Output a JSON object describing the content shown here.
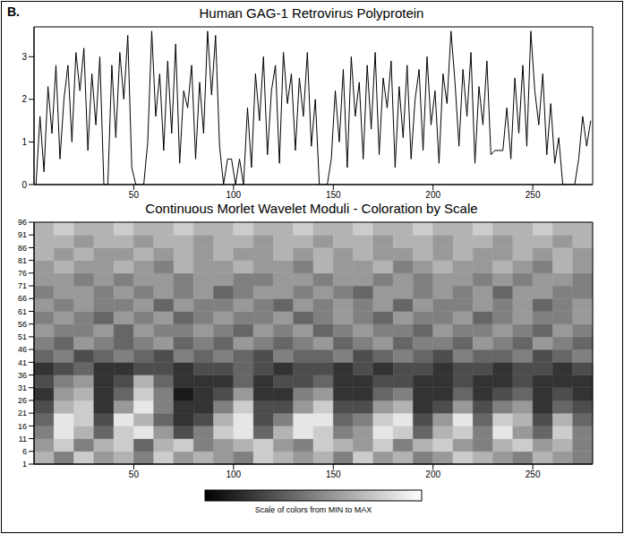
{
  "panel_label": "B.",
  "chart_data": [
    {
      "type": "line",
      "title": "Human GAG-1 Retrovirus Polyprotein",
      "color": "#000000",
      "xlim": [
        0,
        280
      ],
      "xticks": [
        50,
        100,
        150,
        200,
        250
      ],
      "ylim": [
        0,
        3.7
      ],
      "yticks": [
        0,
        1,
        2,
        3
      ],
      "x": [
        1,
        3,
        5,
        7,
        9,
        11,
        13,
        15,
        17,
        19,
        21,
        23,
        25,
        27,
        29,
        31,
        33,
        35,
        37,
        39,
        41,
        43,
        45,
        47,
        49,
        51,
        53,
        55,
        57,
        59,
        61,
        63,
        65,
        67,
        69,
        71,
        73,
        75,
        77,
        79,
        81,
        83,
        85,
        87,
        89,
        91,
        93,
        95,
        97,
        99,
        101,
        103,
        105,
        107,
        109,
        111,
        113,
        115,
        117,
        119,
        121,
        123,
        125,
        127,
        129,
        131,
        133,
        135,
        137,
        139,
        141,
        143,
        145,
        147,
        149,
        151,
        153,
        155,
        157,
        159,
        161,
        163,
        165,
        167,
        169,
        171,
        173,
        175,
        177,
        179,
        181,
        183,
        185,
        187,
        189,
        191,
        193,
        195,
        197,
        199,
        201,
        203,
        205,
        207,
        209,
        211,
        213,
        215,
        217,
        219,
        221,
        223,
        225,
        227,
        229,
        231,
        233,
        235,
        237,
        239,
        241,
        243,
        245,
        247,
        249,
        251,
        253,
        255,
        257,
        259,
        261,
        263,
        265,
        267,
        269,
        271,
        273,
        275,
        277,
        279
      ],
      "values": [
        0,
        1.6,
        0.3,
        2.3,
        1.2,
        2.8,
        0.6,
        2.0,
        2.8,
        1.0,
        3.1,
        2.2,
        3.2,
        0.8,
        2.6,
        1.4,
        3.0,
        0,
        0,
        2.8,
        1.1,
        3.1,
        2.0,
        3.5,
        0.4,
        0,
        0,
        0,
        1.0,
        3.6,
        1.6,
        2.6,
        0.8,
        2.9,
        1.2,
        3.3,
        0.5,
        2.2,
        1.8,
        2.8,
        0.6,
        2.4,
        1.2,
        3.6,
        2.1,
        3.5,
        0.9,
        0,
        0.6,
        0.6,
        0,
        0.6,
        0,
        1.8,
        0.4,
        2.6,
        1.5,
        3.0,
        0.7,
        2.2,
        2.8,
        0.5,
        3.1,
        1.9,
        2.6,
        0.8,
        2.5,
        1.6,
        3.1,
        0.9,
        2.0,
        0,
        0,
        0,
        0.6,
        2.2,
        1.0,
        2.7,
        0.4,
        3.0,
        1.6,
        2.4,
        0.6,
        2.8,
        1.3,
        3.1,
        0.7,
        2.5,
        1.8,
        2.9,
        0.4,
        2.3,
        1.1,
        2.8,
        0.6,
        2.0,
        2.7,
        0.8,
        3.0,
        1.4,
        2.2,
        0.5,
        2.6,
        1.9,
        3.6,
        2.4,
        0.9,
        2.7,
        1.6,
        3.1,
        0.5,
        2.3,
        1.4,
        2.9,
        0.7,
        0.8,
        0.8,
        0.8,
        1.8,
        0.6,
        2.5,
        1.2,
        2.8,
        0.9,
        3.6,
        2.2,
        1.4,
        2.6,
        0.7,
        1.9,
        0.5,
        1.1,
        0,
        0,
        0,
        0,
        0.6,
        1.6,
        0.9,
        1.5
      ]
    },
    {
      "type": "heatmap",
      "title": "Continuous Morlet Wavelet Moduli - Coloration by Scale",
      "xlim": [
        0,
        280
      ],
      "xticks": [
        50,
        100,
        150,
        200,
        250
      ],
      "ylim": [
        1,
        96
      ],
      "yticks": [
        1,
        6,
        11,
        16,
        21,
        26,
        31,
        36,
        41,
        46,
        51,
        56,
        61,
        66,
        71,
        76,
        81,
        86,
        91,
        96
      ],
      "x_bins": [
        0,
        10,
        20,
        30,
        40,
        50,
        60,
        70,
        80,
        90,
        100,
        110,
        120,
        130,
        140,
        150,
        160,
        170,
        180,
        190,
        200,
        210,
        220,
        230,
        240,
        250,
        260,
        270,
        280
      ],
      "y_bins": [
        1,
        6,
        11,
        16,
        21,
        26,
        31,
        36,
        41,
        46,
        51,
        56,
        61,
        66,
        71,
        76,
        81,
        86,
        91,
        96
      ],
      "cells": [
        [
          0.7,
          0.5,
          0.8,
          0.6,
          0.7,
          0.5,
          0.8,
          0.6,
          0.7,
          0.6,
          0.5,
          0.8,
          0.7,
          0.6,
          0.7,
          0.5,
          0.8,
          0.6,
          0.7,
          0.5,
          0.6,
          0.8,
          0.7,
          0.6,
          0.5,
          0.7,
          0.6,
          0.5
        ],
        [
          0.6,
          0.8,
          0.5,
          0.7,
          0.8,
          0.4,
          0.7,
          0.8,
          0.5,
          0.6,
          0.7,
          0.8,
          0.6,
          0.5,
          0.8,
          0.7,
          0.6,
          0.8,
          0.5,
          0.7,
          0.8,
          0.6,
          0.5,
          0.7,
          0.8,
          0.6,
          0.7,
          0.5
        ],
        [
          0.5,
          0.9,
          0.7,
          0.4,
          0.8,
          0.9,
          0.6,
          0.3,
          0.5,
          0.8,
          0.9,
          0.4,
          0.7,
          0.9,
          0.8,
          0.5,
          0.6,
          0.9,
          0.8,
          0.4,
          0.7,
          0.8,
          0.5,
          0.9,
          0.6,
          0.4,
          0.8,
          0.5
        ],
        [
          0.4,
          0.9,
          0.8,
          0.3,
          0.9,
          0.7,
          0.4,
          0.2,
          0.3,
          0.7,
          0.9,
          0.3,
          0.5,
          0.9,
          0.9,
          0.4,
          0.5,
          0.8,
          0.9,
          0.3,
          0.6,
          0.9,
          0.4,
          0.8,
          0.7,
          0.3,
          0.7,
          0.4
        ],
        [
          0.3,
          0.7,
          0.8,
          0.2,
          0.6,
          0.9,
          0.5,
          0.2,
          0.2,
          0.5,
          0.8,
          0.3,
          0.3,
          0.6,
          0.8,
          0.3,
          0.3,
          0.6,
          0.7,
          0.2,
          0.3,
          0.6,
          0.3,
          0.5,
          0.6,
          0.2,
          0.4,
          0.3
        ],
        [
          0.2,
          0.6,
          0.7,
          0.2,
          0.4,
          0.8,
          0.5,
          0.1,
          0.2,
          0.3,
          0.6,
          0.2,
          0.2,
          0.5,
          0.6,
          0.2,
          0.2,
          0.4,
          0.5,
          0.2,
          0.2,
          0.4,
          0.2,
          0.3,
          0.4,
          0.2,
          0.3,
          0.2
        ],
        [
          0.3,
          0.5,
          0.6,
          0.2,
          0.3,
          0.7,
          0.4,
          0.2,
          0.2,
          0.2,
          0.4,
          0.2,
          0.3,
          0.3,
          0.4,
          0.2,
          0.2,
          0.3,
          0.3,
          0.2,
          0.2,
          0.3,
          0.2,
          0.2,
          0.3,
          0.2,
          0.2,
          0.2
        ],
        [
          0.2,
          0.3,
          0.4,
          0.2,
          0.2,
          0.3,
          0.3,
          0.2,
          0.3,
          0.3,
          0.4,
          0.3,
          0.2,
          0.3,
          0.3,
          0.2,
          0.3,
          0.2,
          0.3,
          0.3,
          0.2,
          0.3,
          0.3,
          0.2,
          0.3,
          0.3,
          0.2,
          0.3
        ],
        [
          0.4,
          0.5,
          0.3,
          0.4,
          0.5,
          0.4,
          0.3,
          0.5,
          0.4,
          0.5,
          0.4,
          0.3,
          0.5,
          0.4,
          0.4,
          0.5,
          0.3,
          0.4,
          0.5,
          0.4,
          0.3,
          0.5,
          0.4,
          0.4,
          0.5,
          0.3,
          0.4,
          0.5
        ],
        [
          0.5,
          0.4,
          0.6,
          0.5,
          0.4,
          0.5,
          0.6,
          0.4,
          0.5,
          0.4,
          0.6,
          0.5,
          0.4,
          0.5,
          0.6,
          0.4,
          0.5,
          0.6,
          0.4,
          0.5,
          0.5,
          0.4,
          0.6,
          0.5,
          0.4,
          0.6,
          0.5,
          0.4
        ],
        [
          0.6,
          0.5,
          0.5,
          0.6,
          0.4,
          0.6,
          0.5,
          0.5,
          0.6,
          0.5,
          0.4,
          0.6,
          0.5,
          0.6,
          0.4,
          0.5,
          0.6,
          0.5,
          0.5,
          0.4,
          0.6,
          0.5,
          0.5,
          0.6,
          0.5,
          0.4,
          0.6,
          0.5
        ],
        [
          0.5,
          0.6,
          0.5,
          0.4,
          0.6,
          0.5,
          0.6,
          0.4,
          0.5,
          0.6,
          0.5,
          0.5,
          0.6,
          0.4,
          0.5,
          0.6,
          0.5,
          0.4,
          0.6,
          0.5,
          0.5,
          0.6,
          0.4,
          0.5,
          0.6,
          0.5,
          0.5,
          0.6
        ],
        [
          0.6,
          0.5,
          0.6,
          0.5,
          0.5,
          0.6,
          0.4,
          0.6,
          0.5,
          0.5,
          0.6,
          0.5,
          0.4,
          0.6,
          0.5,
          0.6,
          0.5,
          0.6,
          0.4,
          0.6,
          0.5,
          0.5,
          0.6,
          0.5,
          0.6,
          0.4,
          0.5,
          0.6
        ],
        [
          0.5,
          0.6,
          0.6,
          0.5,
          0.6,
          0.5,
          0.6,
          0.5,
          0.6,
          0.4,
          0.5,
          0.6,
          0.6,
          0.5,
          0.6,
          0.5,
          0.4,
          0.6,
          0.6,
          0.5,
          0.6,
          0.5,
          0.6,
          0.4,
          0.6,
          0.6,
          0.5,
          0.5
        ],
        [
          0.6,
          0.6,
          0.5,
          0.6,
          0.5,
          0.6,
          0.6,
          0.5,
          0.6,
          0.6,
          0.5,
          0.5,
          0.6,
          0.6,
          0.5,
          0.6,
          0.6,
          0.5,
          0.6,
          0.5,
          0.6,
          0.6,
          0.5,
          0.6,
          0.5,
          0.6,
          0.6,
          0.5
        ],
        [
          0.6,
          0.7,
          0.6,
          0.6,
          0.7,
          0.6,
          0.5,
          0.7,
          0.6,
          0.6,
          0.7,
          0.6,
          0.6,
          0.5,
          0.7,
          0.6,
          0.6,
          0.7,
          0.5,
          0.6,
          0.7,
          0.6,
          0.6,
          0.7,
          0.6,
          0.5,
          0.7,
          0.6
        ],
        [
          0.7,
          0.6,
          0.7,
          0.6,
          0.6,
          0.7,
          0.6,
          0.7,
          0.6,
          0.7,
          0.6,
          0.6,
          0.7,
          0.6,
          0.7,
          0.6,
          0.7,
          0.6,
          0.6,
          0.7,
          0.6,
          0.7,
          0.6,
          0.6,
          0.7,
          0.6,
          0.7,
          0.6
        ],
        [
          0.7,
          0.7,
          0.6,
          0.7,
          0.7,
          0.6,
          0.7,
          0.7,
          0.6,
          0.7,
          0.7,
          0.6,
          0.7,
          0.7,
          0.6,
          0.7,
          0.7,
          0.6,
          0.7,
          0.7,
          0.6,
          0.7,
          0.7,
          0.6,
          0.7,
          0.7,
          0.6,
          0.7
        ],
        [
          0.7,
          0.8,
          0.7,
          0.7,
          0.8,
          0.7,
          0.7,
          0.8,
          0.7,
          0.7,
          0.8,
          0.7,
          0.7,
          0.8,
          0.7,
          0.7,
          0.8,
          0.7,
          0.7,
          0.8,
          0.7,
          0.7,
          0.8,
          0.7,
          0.7,
          0.8,
          0.7,
          0.7
        ]
      ],
      "colorbar": {
        "range": [
          0,
          1
        ],
        "label": "Scale of colors from MIN to MAX"
      }
    }
  ]
}
